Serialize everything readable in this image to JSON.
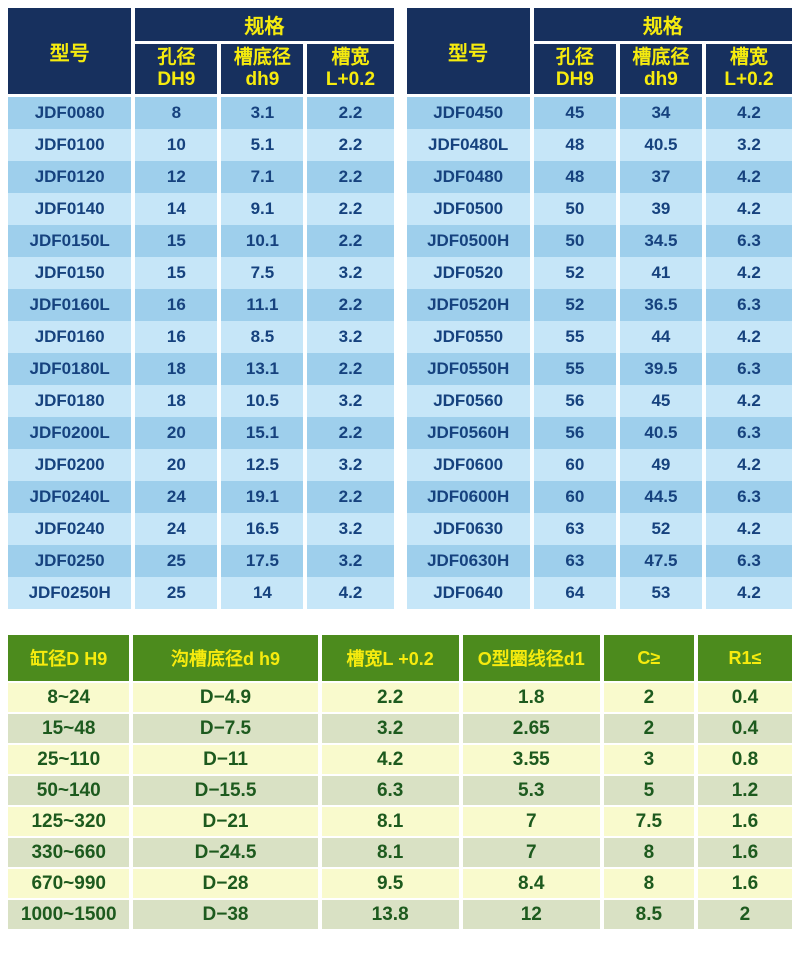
{
  "colors": {
    "header_navy": "#17305e",
    "header_green": "#4c8b1d",
    "header_text_yellow": "#f6eb0e",
    "row_blue_dark": "#9ecfec",
    "row_blue_light": "#c6e6f8",
    "row_green_light": "#f9facd",
    "row_green_sage": "#d9e1c4",
    "cell_text_blue": "#16427e",
    "cell_text_green": "#1d5a1e"
  },
  "left_table": {
    "model_header": "型号",
    "spec_header": "规格",
    "sub_headers": [
      {
        "line1": "孔径",
        "line2": "DH9"
      },
      {
        "line1": "槽底径",
        "line2": "dh9"
      },
      {
        "line1": "槽宽",
        "line2": "L+0.2"
      }
    ],
    "rows": [
      [
        "JDF0080",
        "8",
        "3.1",
        "2.2"
      ],
      [
        "JDF0100",
        "10",
        "5.1",
        "2.2"
      ],
      [
        "JDF0120",
        "12",
        "7.1",
        "2.2"
      ],
      [
        "JDF0140",
        "14",
        "9.1",
        "2.2"
      ],
      [
        "JDF0150L",
        "15",
        "10.1",
        "2.2"
      ],
      [
        "JDF0150",
        "15",
        "7.5",
        "3.2"
      ],
      [
        "JDF0160L",
        "16",
        "11.1",
        "2.2"
      ],
      [
        "JDF0160",
        "16",
        "8.5",
        "3.2"
      ],
      [
        "JDF0180L",
        "18",
        "13.1",
        "2.2"
      ],
      [
        "JDF0180",
        "18",
        "10.5",
        "3.2"
      ],
      [
        "JDF0200L",
        "20",
        "15.1",
        "2.2"
      ],
      [
        "JDF0200",
        "20",
        "12.5",
        "3.2"
      ],
      [
        "JDF0240L",
        "24",
        "19.1",
        "2.2"
      ],
      [
        "JDF0240",
        "24",
        "16.5",
        "3.2"
      ],
      [
        "JDF0250",
        "25",
        "17.5",
        "3.2"
      ],
      [
        "JDF0250H",
        "25",
        "14",
        "4.2"
      ]
    ]
  },
  "right_table": {
    "model_header": "型号",
    "spec_header": "规格",
    "sub_headers": [
      {
        "line1": "孔径",
        "line2": "DH9"
      },
      {
        "line1": "槽底径",
        "line2": "dh9"
      },
      {
        "line1": "槽宽",
        "line2": "L+0.2"
      }
    ],
    "rows": [
      [
        "JDF0450",
        "45",
        "34",
        "4.2"
      ],
      [
        "JDF0480L",
        "48",
        "40.5",
        "3.2"
      ],
      [
        "JDF0480",
        "48",
        "37",
        "4.2"
      ],
      [
        "JDF0500",
        "50",
        "39",
        "4.2"
      ],
      [
        "JDF0500H",
        "50",
        "34.5",
        "6.3"
      ],
      [
        "JDF0520",
        "52",
        "41",
        "4.2"
      ],
      [
        "JDF0520H",
        "52",
        "36.5",
        "6.3"
      ],
      [
        "JDF0550",
        "55",
        "44",
        "4.2"
      ],
      [
        "JDF0550H",
        "55",
        "39.5",
        "6.3"
      ],
      [
        "JDF0560",
        "56",
        "45",
        "4.2"
      ],
      [
        "JDF0560H",
        "56",
        "40.5",
        "6.3"
      ],
      [
        "JDF0600",
        "60",
        "49",
        "4.2"
      ],
      [
        "JDF0600H",
        "60",
        "44.5",
        "6.3"
      ],
      [
        "JDF0630",
        "63",
        "52",
        "4.2"
      ],
      [
        "JDF0630H",
        "63",
        "47.5",
        "6.3"
      ],
      [
        "JDF0640",
        "64",
        "53",
        "4.2"
      ]
    ]
  },
  "bottom_table": {
    "headers": [
      "缸径D H9",
      "沟槽底径d h9",
      "槽宽L +0.2",
      "O型圈线径d1",
      "C≥",
      "R1≤"
    ],
    "rows": [
      [
        "8~24",
        "D−4.9",
        "2.2",
        "1.8",
        "2",
        "0.4"
      ],
      [
        "15~48",
        "D−7.5",
        "3.2",
        "2.65",
        "2",
        "0.4"
      ],
      [
        "25~110",
        "D−11",
        "4.2",
        "3.55",
        "3",
        "0.8"
      ],
      [
        "50~140",
        "D−15.5",
        "6.3",
        "5.3",
        "5",
        "1.2"
      ],
      [
        "125~320",
        "D−21",
        "8.1",
        "7",
        "7.5",
        "1.6"
      ],
      [
        "330~660",
        "D−24.5",
        "8.1",
        "7",
        "8",
        "1.6"
      ],
      [
        "670~990",
        "D−28",
        "9.5",
        "8.4",
        "8",
        "1.6"
      ],
      [
        "1000~1500",
        "D−38",
        "13.8",
        "12",
        "8.5",
        "2"
      ]
    ]
  }
}
